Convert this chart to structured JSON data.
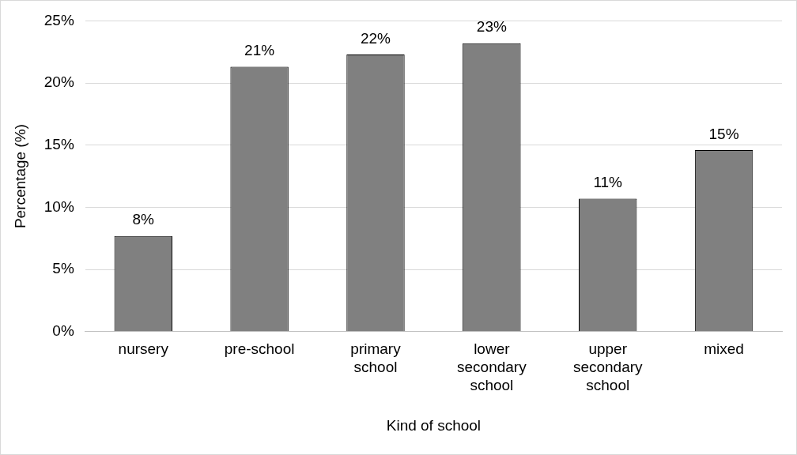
{
  "chart_data": {
    "type": "bar",
    "xlabel": "Kind of school",
    "ylabel": "Percentage (%)",
    "categories": [
      "nursery",
      "pre-school",
      "primary school",
      "lower secondary school",
      "upper secondary school",
      "mixed"
    ],
    "values": [
      7.7,
      21.3,
      22.3,
      23.2,
      10.7,
      14.6
    ],
    "value_labels": [
      "8%",
      "21%",
      "22%",
      "23%",
      "11%",
      "15%"
    ],
    "color": "#808080",
    "ylim": [
      0,
      25
    ],
    "yticks": [
      {
        "value": 0,
        "label": "0%"
      },
      {
        "value": 5,
        "label": "5%"
      },
      {
        "value": 10,
        "label": "10%"
      },
      {
        "value": 15,
        "label": "15%"
      },
      {
        "value": 20,
        "label": "20%"
      },
      {
        "value": 25,
        "label": "25%"
      }
    ],
    "grid": "y",
    "legend": false
  }
}
